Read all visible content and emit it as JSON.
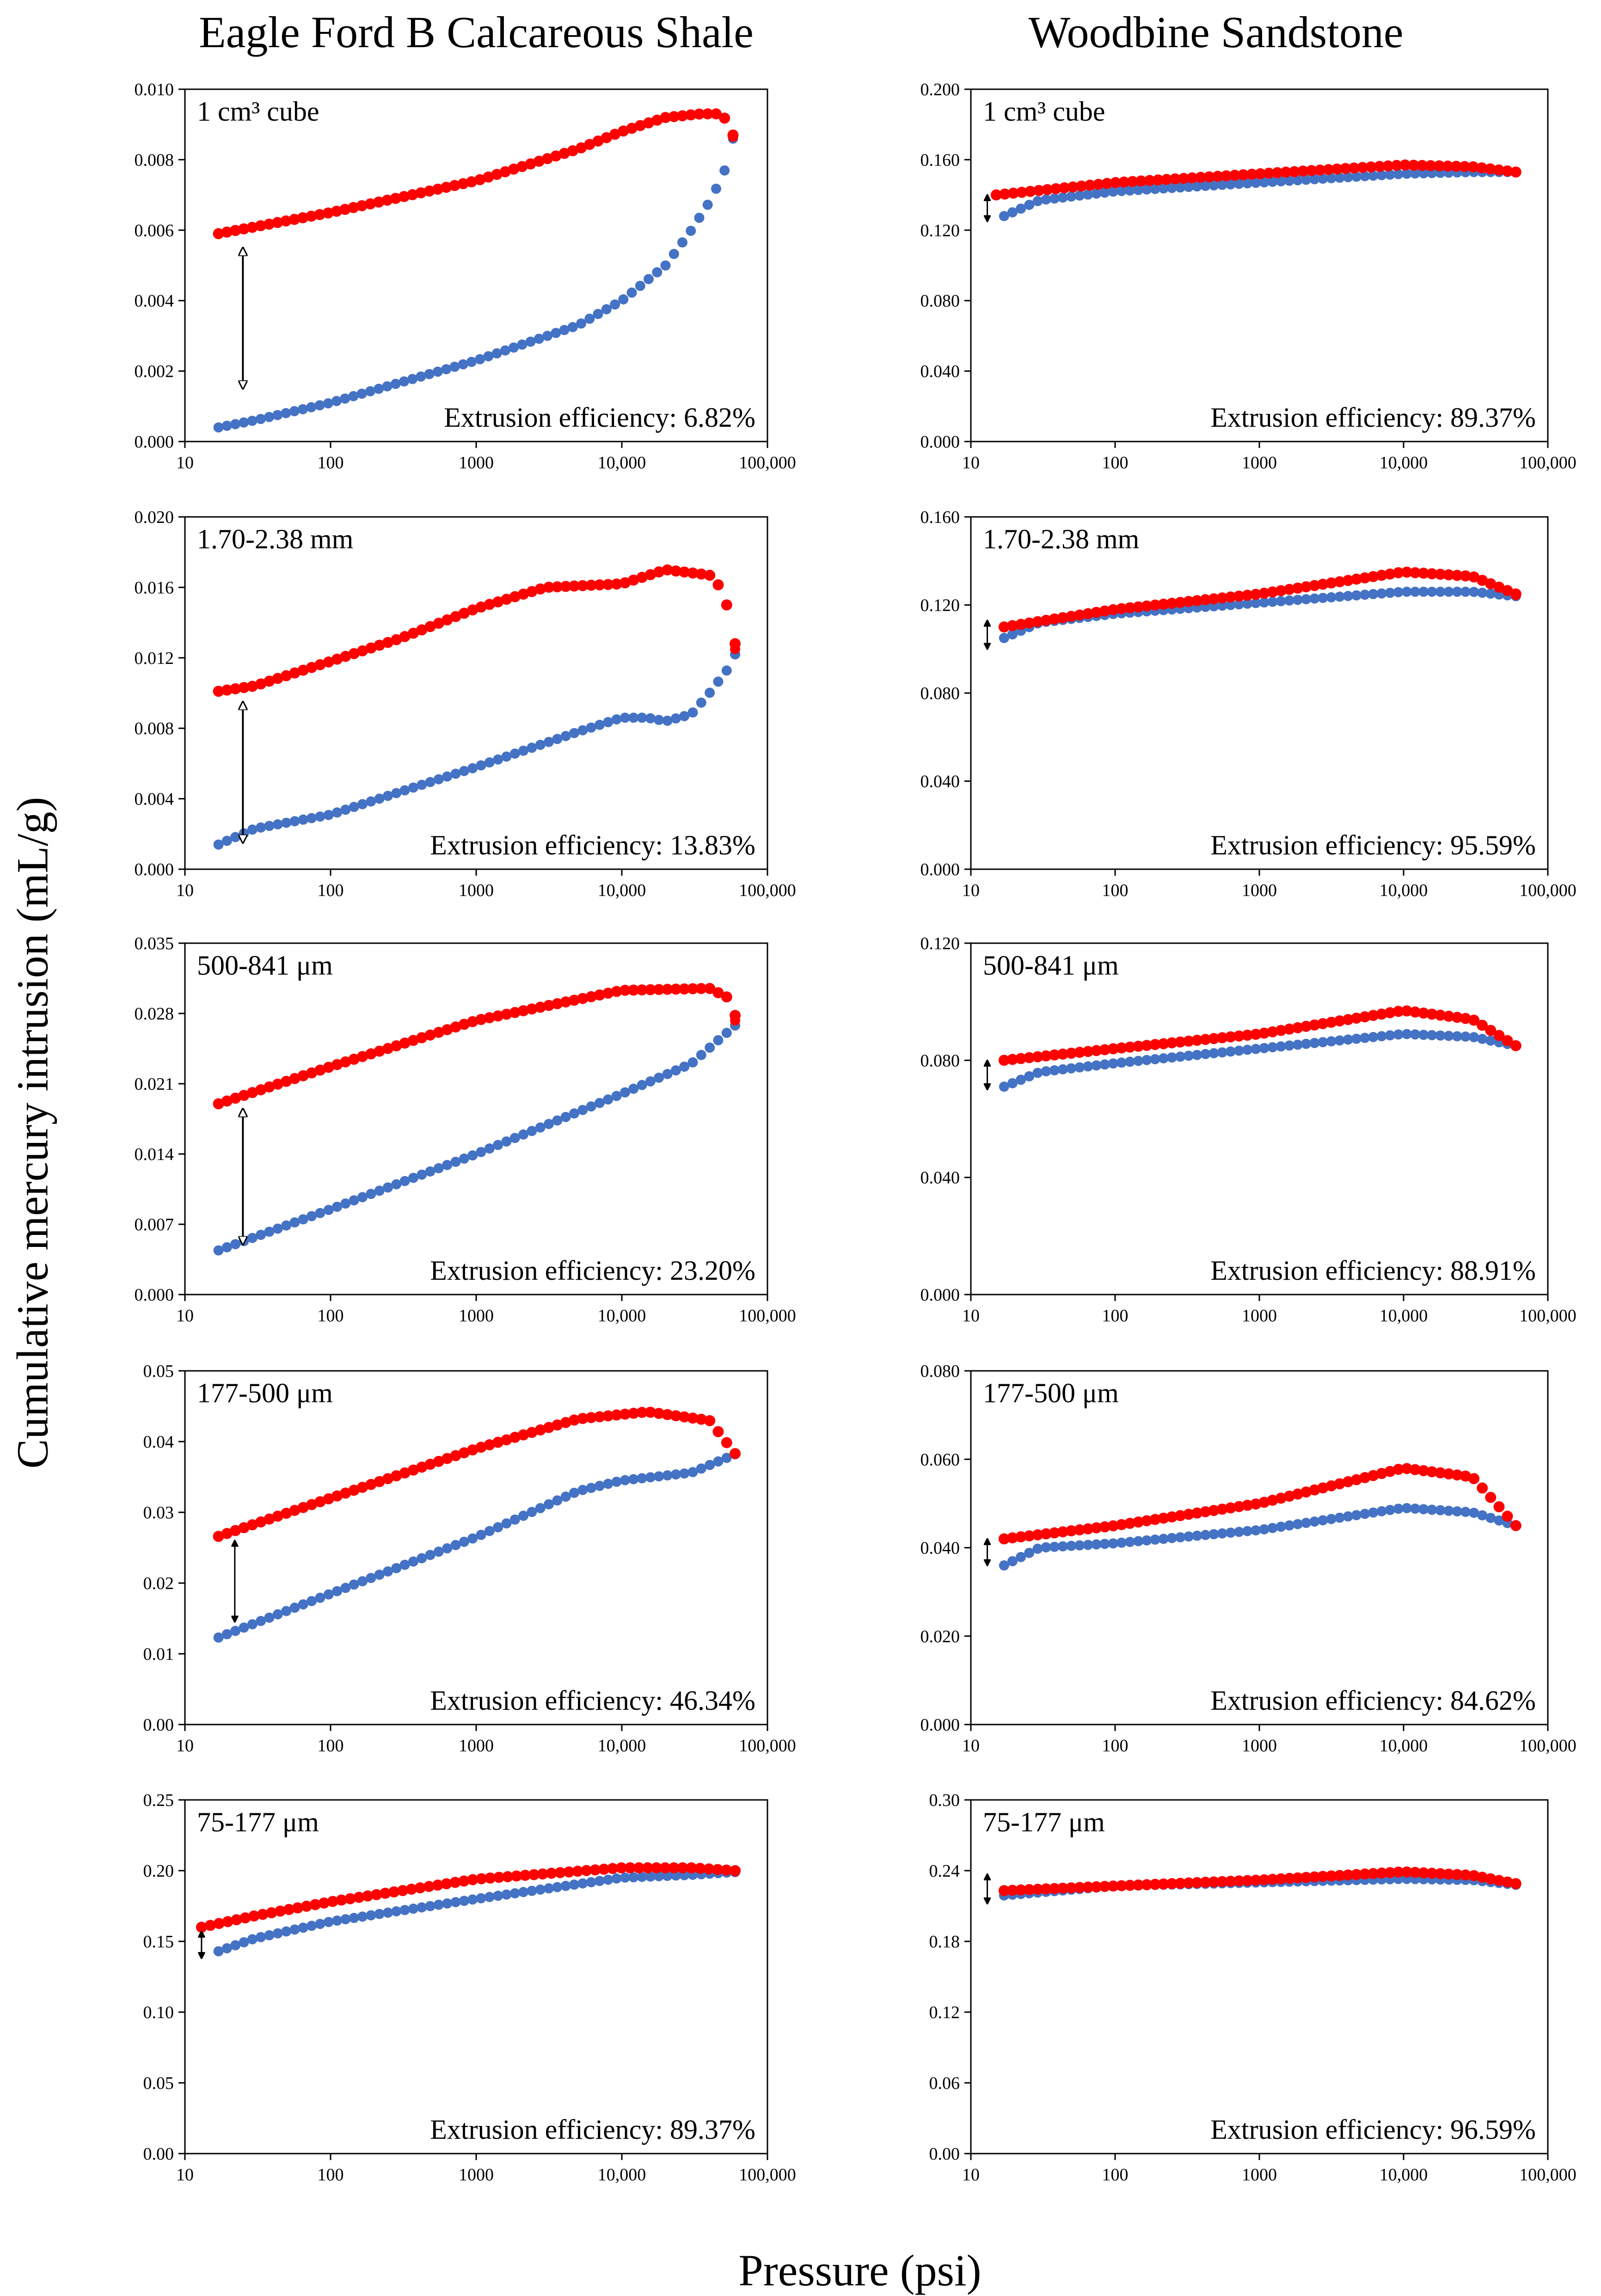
{
  "titles": {
    "left": "Eagle Ford B Calcareous Shale",
    "right": "Woodbine Sandstone"
  },
  "axes": {
    "ylabel": "Cumulative  mercury intrusion (mL/g)",
    "xlabel": "Pressure (psi)",
    "xticks": [
      "10",
      "100",
      "1000",
      "10,000",
      "100,000"
    ]
  },
  "colors": {
    "intrusion": "#4472C4",
    "extrusion": "#FF0000"
  },
  "chart_data": [
    {
      "id": "ef-cube",
      "type": "scatter",
      "col": 0,
      "row": 0,
      "label": "1 cm³ cube",
      "efficiency": "Extrusion efficiency: 6.82%",
      "xlim": [
        10,
        100000
      ],
      "ylim": [
        0,
        0.01
      ],
      "yticks": [
        "0.000",
        "0.002",
        "0.004",
        "0.006",
        "0.008",
        "0.010"
      ],
      "series": [
        {
          "name": "intrusion",
          "points": [
            [
              17,
              0.0004
            ],
            [
              30,
              0.0006
            ],
            [
              100,
              0.0011
            ],
            [
              1000,
              0.0023
            ],
            [
              5000,
              0.0033
            ],
            [
              10000,
              0.004
            ],
            [
              20000,
              0.005
            ],
            [
              30000,
              0.006
            ],
            [
              40000,
              0.0068
            ],
            [
              50000,
              0.0076
            ],
            [
              55000,
              0.0082
            ],
            [
              58000,
              0.0086
            ]
          ]
        },
        {
          "name": "extrusion",
          "points": [
            [
              17,
              0.0059
            ],
            [
              100,
              0.0065
            ],
            [
              1000,
              0.0074
            ],
            [
              5000,
              0.0083
            ],
            [
              10000,
              0.0088
            ],
            [
              20000,
              0.0092
            ],
            [
              35000,
              0.0093
            ],
            [
              45000,
              0.0093
            ],
            [
              55000,
              0.0091
            ],
            [
              58000,
              0.0087
            ]
          ]
        }
      ],
      "arrow": {
        "x": 25,
        "y1": 0.0055,
        "y2": 0.0015,
        "style": "open"
      }
    },
    {
      "id": "wb-cube",
      "type": "scatter",
      "col": 1,
      "row": 0,
      "label": "1 cm³ cube",
      "efficiency": "Extrusion efficiency: 89.37%",
      "xlim": [
        10,
        100000
      ],
      "ylim": [
        0,
        0.2
      ],
      "yticks": [
        "0.000",
        "0.040",
        "0.080",
        "0.120",
        "0.160",
        "0.200"
      ],
      "series": [
        {
          "name": "intrusion",
          "points": [
            [
              17,
              0.128
            ],
            [
              30,
              0.137
            ],
            [
              100,
              0.142
            ],
            [
              1000,
              0.147
            ],
            [
              10000,
              0.152
            ],
            [
              30000,
              0.153
            ],
            [
              60000,
              0.153
            ]
          ]
        },
        {
          "name": "extrusion",
          "points": [
            [
              15,
              0.14
            ],
            [
              100,
              0.147
            ],
            [
              1000,
              0.152
            ],
            [
              10000,
              0.157
            ],
            [
              30000,
              0.156
            ],
            [
              60000,
              0.153
            ]
          ]
        }
      ],
      "arrow": {
        "x": 13,
        "y1": 0.14,
        "y2": 0.125,
        "style": "small"
      }
    },
    {
      "id": "ef-170",
      "type": "scatter",
      "col": 0,
      "row": 1,
      "label": "1.70-2.38 mm",
      "efficiency": "Extrusion efficiency: 13.83%",
      "xlim": [
        10,
        100000
      ],
      "ylim": [
        0,
        0.02
      ],
      "yticks": [
        "0.000",
        "0.004",
        "0.008",
        "0.012",
        "0.016",
        "0.020"
      ],
      "series": [
        {
          "name": "intrusion",
          "points": [
            [
              17,
              0.0014
            ],
            [
              30,
              0.0023
            ],
            [
              100,
              0.0031
            ],
            [
              1000,
              0.0058
            ],
            [
              5000,
              0.0078
            ],
            [
              10000,
              0.0086
            ],
            [
              15000,
              0.0086
            ],
            [
              20000,
              0.0084
            ],
            [
              30000,
              0.0088
            ],
            [
              40000,
              0.01
            ],
            [
              55000,
              0.0115
            ],
            [
              60000,
              0.0122
            ]
          ]
        },
        {
          "name": "extrusion",
          "points": [
            [
              17,
              0.0101
            ],
            [
              30,
              0.0104
            ],
            [
              100,
              0.0118
            ],
            [
              300,
              0.0131
            ],
            [
              1000,
              0.0148
            ],
            [
              3000,
              0.016
            ],
            [
              10000,
              0.0162
            ],
            [
              20000,
              0.017
            ],
            [
              40000,
              0.0167
            ],
            [
              50000,
              0.0158
            ],
            [
              60000,
              0.0128
            ]
          ]
        }
      ],
      "arrow": {
        "x": 25,
        "y1": 0.0095,
        "y2": 0.0015,
        "style": "open"
      }
    },
    {
      "id": "wb-170",
      "type": "scatter",
      "col": 1,
      "row": 1,
      "label": "1.70-2.38 mm",
      "efficiency": "Extrusion efficiency:  95.59%",
      "xlim": [
        10,
        100000
      ],
      "ylim": [
        0,
        0.16
      ],
      "yticks": [
        "0.000",
        "0.040",
        "0.080",
        "0.120",
        "0.160"
      ],
      "series": [
        {
          "name": "intrusion",
          "points": [
            [
              17,
              0.105
            ],
            [
              30,
              0.112
            ],
            [
              100,
              0.116
            ],
            [
              1000,
              0.121
            ],
            [
              10000,
              0.126
            ],
            [
              30000,
              0.126
            ],
            [
              60000,
              0.124
            ]
          ]
        },
        {
          "name": "extrusion",
          "points": [
            [
              17,
              0.11
            ],
            [
              100,
              0.118
            ],
            [
              1000,
              0.125
            ],
            [
              10000,
              0.135
            ],
            [
              30000,
              0.133
            ],
            [
              60000,
              0.125
            ]
          ]
        }
      ],
      "arrow": {
        "x": 13,
        "y1": 0.113,
        "y2": 0.1,
        "style": "small"
      }
    },
    {
      "id": "ef-500",
      "type": "scatter",
      "col": 0,
      "row": 2,
      "label": "500-841 μm",
      "efficiency": "Extrusion efficiency:  23.20%",
      "xlim": [
        10,
        100000
      ],
      "ylim": [
        0,
        0.035
      ],
      "yticks": [
        "0.000",
        "0.007",
        "0.014",
        "0.021",
        "0.028",
        "0.035"
      ],
      "series": [
        {
          "name": "intrusion",
          "points": [
            [
              17,
              0.0044
            ],
            [
              100,
              0.0085
            ],
            [
              1000,
              0.014
            ],
            [
              10000,
              0.02
            ],
            [
              30000,
              0.023
            ],
            [
              60000,
              0.0268
            ]
          ]
        },
        {
          "name": "extrusion",
          "points": [
            [
              17,
              0.019
            ],
            [
              100,
              0.0227
            ],
            [
              1000,
              0.0273
            ],
            [
              10000,
              0.0303
            ],
            [
              40000,
              0.0305
            ],
            [
              55000,
              0.0295
            ],
            [
              60000,
              0.0278
            ]
          ]
        }
      ],
      "arrow": {
        "x": 25,
        "y1": 0.0185,
        "y2": 0.005,
        "style": "open"
      }
    },
    {
      "id": "wb-500",
      "type": "scatter",
      "col": 1,
      "row": 2,
      "label": "500-841 μm",
      "efficiency": "Extrusion efficiency:  88.91%",
      "xlim": [
        10,
        100000
      ],
      "ylim": [
        0,
        0.12
      ],
      "yticks": [
        "0.000",
        "0.040",
        "0.080",
        "0.120"
      ],
      "series": [
        {
          "name": "intrusion",
          "points": [
            [
              17,
              0.071
            ],
            [
              30,
              0.076
            ],
            [
              100,
              0.079
            ],
            [
              1000,
              0.084
            ],
            [
              10000,
              0.089
            ],
            [
              30000,
              0.088
            ],
            [
              60000,
              0.085
            ]
          ]
        },
        {
          "name": "extrusion",
          "points": [
            [
              17,
              0.08
            ],
            [
              100,
              0.084
            ],
            [
              1000,
              0.089
            ],
            [
              10000,
              0.097
            ],
            [
              30000,
              0.094
            ],
            [
              60000,
              0.085
            ]
          ]
        }
      ],
      "arrow": {
        "x": 13,
        "y1": 0.08,
        "y2": 0.07,
        "style": "small"
      }
    },
    {
      "id": "ef-177",
      "type": "scatter",
      "col": 0,
      "row": 3,
      "label": "177-500 μm",
      "efficiency": "Extrusion efficiency:  46.34%",
      "xlim": [
        10,
        100000
      ],
      "ylim": [
        0,
        0.05
      ],
      "yticks": [
        "0.00",
        "0.01",
        "0.02",
        "0.03",
        "0.04",
        "0.05"
      ],
      "series": [
        {
          "name": "intrusion",
          "points": [
            [
              17,
              0.0123
            ],
            [
              100,
              0.0185
            ],
            [
              1000,
              0.0265
            ],
            [
              5000,
              0.033
            ],
            [
              10000,
              0.0345
            ],
            [
              30000,
              0.0356
            ],
            [
              60000,
              0.0382
            ]
          ]
        },
        {
          "name": "extrusion",
          "points": [
            [
              17,
              0.0266
            ],
            [
              100,
              0.032
            ],
            [
              1000,
              0.039
            ],
            [
              5000,
              0.0432
            ],
            [
              15000,
              0.0442
            ],
            [
              40000,
              0.043
            ],
            [
              60000,
              0.0383
            ]
          ]
        }
      ],
      "arrow": {
        "x": 22,
        "y1": 0.026,
        "y2": 0.0145,
        "style": "small"
      }
    },
    {
      "id": "wb-177",
      "type": "scatter",
      "col": 1,
      "row": 3,
      "label": "177-500 μm",
      "efficiency": "Extrusion efficiency:  84.62%",
      "xlim": [
        10,
        100000
      ],
      "ylim": [
        0,
        0.08
      ],
      "yticks": [
        "0.000",
        "0.020",
        "0.040",
        "0.060",
        "0.080"
      ],
      "series": [
        {
          "name": "intrusion",
          "points": [
            [
              17,
              0.036
            ],
            [
              30,
              0.04
            ],
            [
              100,
              0.041
            ],
            [
              1000,
              0.044
            ],
            [
              10000,
              0.049
            ],
            [
              30000,
              0.048
            ],
            [
              60000,
              0.045
            ]
          ]
        },
        {
          "name": "extrusion",
          "points": [
            [
              17,
              0.042
            ],
            [
              100,
              0.045
            ],
            [
              1000,
              0.05
            ],
            [
              10000,
              0.058
            ],
            [
              30000,
              0.056
            ],
            [
              60000,
              0.045
            ]
          ]
        }
      ],
      "arrow": {
        "x": 13,
        "y1": 0.042,
        "y2": 0.036,
        "style": "small"
      }
    },
    {
      "id": "ef-75",
      "type": "scatter",
      "col": 0,
      "row": 4,
      "label": "75-177 μm",
      "efficiency": "Extrusion efficiency:  89.37%",
      "xlim": [
        10,
        100000
      ],
      "ylim": [
        0,
        0.25
      ],
      "yticks": [
        "0.00",
        "0.05",
        "0.10",
        "0.15",
        "0.20",
        "0.25"
      ],
      "series": [
        {
          "name": "intrusion",
          "points": [
            [
              17,
              0.143
            ],
            [
              30,
              0.152
            ],
            [
              100,
              0.164
            ],
            [
              1000,
              0.18
            ],
            [
              10000,
              0.195
            ],
            [
              30000,
              0.197
            ],
            [
              60000,
              0.199
            ]
          ]
        },
        {
          "name": "extrusion",
          "points": [
            [
              13,
              0.16
            ],
            [
              30,
              0.168
            ],
            [
              100,
              0.178
            ],
            [
              1000,
              0.194
            ],
            [
              10000,
              0.202
            ],
            [
              30000,
              0.202
            ],
            [
              60000,
              0.2
            ]
          ]
        }
      ],
      "arrow": {
        "x": 13,
        "y1": 0.157,
        "y2": 0.138,
        "style": "small"
      }
    },
    {
      "id": "wb-75",
      "type": "scatter",
      "col": 1,
      "row": 4,
      "label": "75-177 μm",
      "efficiency": "Extrusion efficiency:  96.59%",
      "xlim": [
        10,
        100000
      ],
      "ylim": [
        0,
        0.3
      ],
      "yticks": [
        "0.00",
        "0.06",
        "0.12",
        "0.18",
        "0.24",
        "0.30"
      ],
      "series": [
        {
          "name": "intrusion",
          "points": [
            [
              17,
              0.219
            ],
            [
              100,
              0.227
            ],
            [
              1000,
              0.23
            ],
            [
              10000,
              0.233
            ],
            [
              30000,
              0.232
            ],
            [
              60000,
              0.228
            ]
          ]
        },
        {
          "name": "extrusion",
          "points": [
            [
              17,
              0.223
            ],
            [
              100,
              0.227
            ],
            [
              1000,
              0.232
            ],
            [
              10000,
              0.239
            ],
            [
              30000,
              0.236
            ],
            [
              60000,
              0.229
            ]
          ]
        }
      ],
      "arrow": {
        "x": 13,
        "y1": 0.237,
        "y2": 0.212,
        "style": "small"
      }
    }
  ]
}
